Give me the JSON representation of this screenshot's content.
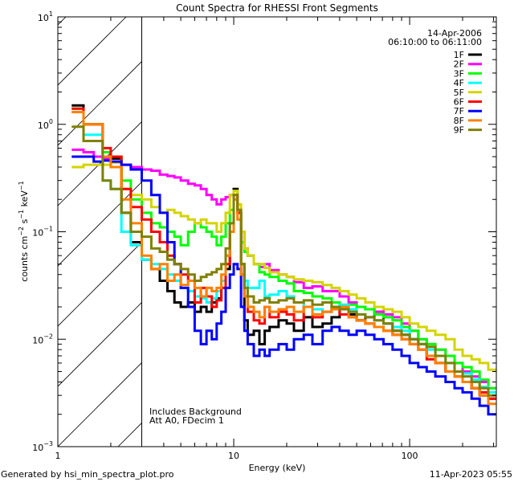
{
  "chart_data": {
    "type": "line",
    "title": "Count Spectra for RHESSI Front Segments",
    "xlabel": "Energy (keV)",
    "ylabel": "counts cm-2 s-1 keV-1",
    "xscale": "log",
    "yscale": "log",
    "xlim": [
      1,
      311
    ],
    "ylim": [
      0.001,
      10
    ],
    "x_ticks": [
      "1",
      "10",
      "100"
    ],
    "y_ticks": [
      {
        "value": 10,
        "mantissa": "10",
        "exp": "1"
      },
      {
        "value": 1,
        "mantissa": "10",
        "exp": "0"
      },
      {
        "value": 0.1,
        "mantissa": "10",
        "exp": "−1"
      },
      {
        "value": 0.01,
        "mantissa": "10",
        "exp": "−2"
      },
      {
        "value": 0.001,
        "mantissa": "10",
        "exp": "−3"
      }
    ],
    "hatched_region_keV": [
      1,
      3
    ],
    "legend_position": "top-right",
    "legend_header": [
      "14-Apr-2006",
      "06:10:00 to 06:11:00"
    ],
    "annotations": [
      "Includes Background",
      "Att A0, FDecim 1"
    ],
    "x": [
      1.2,
      1.4,
      1.6,
      1.8,
      2.0,
      2.3,
      2.6,
      3.0,
      3.4,
      3.8,
      4.2,
      4.6,
      5.0,
      5.5,
      6.0,
      6.5,
      7.0,
      7.5,
      8.0,
      8.5,
      9.0,
      9.5,
      10.0,
      10.5,
      11.0,
      11.5,
      12.0,
      13,
      14,
      15,
      16,
      18,
      20,
      22,
      25,
      28,
      32,
      36,
      40,
      45,
      50,
      56,
      63,
      71,
      80,
      90,
      100,
      112,
      125,
      140,
      160,
      180,
      200,
      225,
      250,
      280,
      311
    ],
    "series": [
      {
        "name": "1F",
        "color": "#000000",
        "values": [
          1.5,
          1.0,
          1.0,
          0.55,
          0.48,
          0.15,
          0.08,
          0.055,
          0.045,
          0.035,
          0.028,
          0.022,
          0.02,
          0.022,
          0.018,
          0.02,
          0.018,
          0.022,
          0.024,
          0.03,
          0.045,
          0.1,
          0.25,
          0.15,
          0.04,
          0.015,
          0.011,
          0.012,
          0.009,
          0.012,
          0.013,
          0.015,
          0.014,
          0.012,
          0.016,
          0.013,
          0.014,
          0.016,
          0.019,
          0.017,
          0.015,
          0.016,
          0.018,
          0.014,
          0.012,
          0.011,
          0.01,
          0.009,
          0.007,
          0.006,
          0.005,
          0.0045,
          0.004,
          0.0035,
          0.003,
          0.0028,
          0.0025
        ]
      },
      {
        "name": "2F",
        "color": "#ff00ff",
        "values": [
          0.58,
          0.55,
          0.5,
          0.48,
          0.45,
          0.42,
          0.4,
          0.38,
          0.37,
          0.34,
          0.33,
          0.32,
          0.3,
          0.28,
          0.27,
          0.25,
          0.22,
          0.2,
          0.18,
          0.2,
          0.21,
          0.22,
          0.2,
          0.15,
          0.1,
          0.07,
          0.06,
          0.05,
          0.047,
          0.05,
          0.044,
          0.04,
          0.038,
          0.034,
          0.03,
          0.031,
          0.028,
          0.028,
          0.025,
          0.022,
          0.02,
          0.019,
          0.018,
          0.017,
          0.016,
          0.014,
          0.012,
          0.01,
          0.009,
          0.008,
          0.007,
          0.006,
          0.005,
          0.0045,
          0.004,
          0.0035,
          0.003
        ]
      },
      {
        "name": "3F",
        "color": "#00ff00",
        "values": [
          1.4,
          1.0,
          1.0,
          0.55,
          0.5,
          0.3,
          0.2,
          0.15,
          0.12,
          0.11,
          0.1,
          0.09,
          0.075,
          0.1,
          0.12,
          0.11,
          0.1,
          0.09,
          0.075,
          0.09,
          0.12,
          0.16,
          0.2,
          0.15,
          0.08,
          0.065,
          0.06,
          0.05,
          0.042,
          0.04,
          0.038,
          0.035,
          0.033,
          0.028,
          0.027,
          0.025,
          0.024,
          0.022,
          0.02,
          0.021,
          0.02,
          0.019,
          0.017,
          0.016,
          0.015,
          0.013,
          0.012,
          0.01,
          0.009,
          0.008,
          0.007,
          0.006,
          0.0055,
          0.005,
          0.0042,
          0.0035,
          0.003
        ]
      },
      {
        "name": "4F",
        "color": "#00ffff",
        "values": [
          1.3,
          0.8,
          0.8,
          0.3,
          0.25,
          0.1,
          0.075,
          0.055,
          0.05,
          0.045,
          0.04,
          0.035,
          0.03,
          0.028,
          0.025,
          0.024,
          0.022,
          0.024,
          0.028,
          0.035,
          0.06,
          0.12,
          0.2,
          0.15,
          0.05,
          0.035,
          0.03,
          0.03,
          0.035,
          0.025,
          0.026,
          0.028,
          0.025,
          0.022,
          0.02,
          0.019,
          0.018,
          0.02,
          0.021,
          0.019,
          0.017,
          0.016,
          0.015,
          0.014,
          0.013,
          0.012,
          0.01,
          0.009,
          0.008,
          0.007,
          0.006,
          0.005,
          0.0048,
          0.0042,
          0.0036,
          0.0032,
          0.0028
        ]
      },
      {
        "name": "5F",
        "color": "#d4d400",
        "values": [
          0.4,
          0.42,
          0.42,
          0.42,
          0.44,
          0.25,
          0.22,
          0.2,
          0.17,
          0.15,
          0.16,
          0.15,
          0.14,
          0.13,
          0.12,
          0.13,
          0.12,
          0.12,
          0.1,
          0.12,
          0.15,
          0.22,
          0.24,
          0.18,
          0.1,
          0.07,
          0.06,
          0.05,
          0.05,
          0.046,
          0.042,
          0.04,
          0.038,
          0.036,
          0.035,
          0.034,
          0.032,
          0.03,
          0.028,
          0.026,
          0.024,
          0.022,
          0.02,
          0.019,
          0.018,
          0.016,
          0.014,
          0.013,
          0.012,
          0.011,
          0.01,
          0.008,
          0.007,
          0.0065,
          0.006,
          0.0052,
          0.0045
        ]
      },
      {
        "name": "6F",
        "color": "#ff0000",
        "values": [
          1.4,
          1.0,
          1.0,
          0.6,
          0.5,
          0.25,
          0.17,
          0.13,
          0.1,
          0.08,
          0.06,
          0.05,
          0.04,
          0.035,
          0.022,
          0.03,
          0.025,
          0.02,
          0.023,
          0.03,
          0.05,
          0.1,
          0.22,
          0.15,
          0.05,
          0.025,
          0.018,
          0.015,
          0.014,
          0.02,
          0.016,
          0.018,
          0.017,
          0.015,
          0.02,
          0.016,
          0.018,
          0.02,
          0.017,
          0.016,
          0.015,
          0.014,
          0.013,
          0.012,
          0.011,
          0.01,
          0.009,
          0.008,
          0.0065,
          0.006,
          0.005,
          0.0045,
          0.004,
          0.0035,
          0.0032,
          0.0028,
          0.0025
        ]
      },
      {
        "name": "7F",
        "color": "#0000ff",
        "values": [
          0.5,
          0.5,
          0.45,
          0.46,
          0.45,
          0.42,
          0.38,
          0.3,
          0.22,
          0.15,
          0.08,
          0.05,
          0.03,
          0.02,
          0.012,
          0.009,
          0.012,
          0.01,
          0.014,
          0.018,
          0.03,
          0.04,
          0.05,
          0.045,
          0.02,
          0.012,
          0.009,
          0.007,
          0.008,
          0.007,
          0.008,
          0.009,
          0.008,
          0.01,
          0.011,
          0.009,
          0.012,
          0.013,
          0.012,
          0.011,
          0.012,
          0.011,
          0.01,
          0.009,
          0.008,
          0.007,
          0.006,
          0.0055,
          0.005,
          0.0045,
          0.004,
          0.0035,
          0.0032,
          0.0028,
          0.0024,
          0.002,
          0.0018
        ]
      },
      {
        "name": "8F",
        "color": "#ff8000",
        "values": [
          1.3,
          1.0,
          1.0,
          0.5,
          0.4,
          0.2,
          0.12,
          0.06,
          0.045,
          0.05,
          0.035,
          0.04,
          0.032,
          0.035,
          0.03,
          0.025,
          0.03,
          0.028,
          0.03,
          0.04,
          0.06,
          0.1,
          0.2,
          0.13,
          0.04,
          0.025,
          0.02,
          0.018,
          0.016,
          0.02,
          0.018,
          0.019,
          0.02,
          0.018,
          0.02,
          0.017,
          0.018,
          0.019,
          0.02,
          0.016,
          0.015,
          0.014,
          0.013,
          0.012,
          0.011,
          0.01,
          0.009,
          0.008,
          0.007,
          0.006,
          0.005,
          0.0045,
          0.004,
          0.0035,
          0.003,
          0.0025,
          0.0022
        ]
      },
      {
        "name": "9F",
        "color": "#808000",
        "values": [
          0.95,
          0.7,
          0.7,
          0.3,
          0.25,
          0.15,
          0.1,
          0.09,
          0.07,
          0.065,
          0.055,
          0.05,
          0.045,
          0.04,
          0.035,
          0.038,
          0.04,
          0.042,
          0.045,
          0.05,
          0.07,
          0.12,
          0.22,
          0.16,
          0.05,
          0.03,
          0.025,
          0.022,
          0.023,
          0.024,
          0.022,
          0.023,
          0.024,
          0.022,
          0.023,
          0.021,
          0.022,
          0.02,
          0.019,
          0.018,
          0.017,
          0.016,
          0.015,
          0.014,
          0.012,
          0.011,
          0.01,
          0.009,
          0.0085,
          0.007,
          0.006,
          0.005,
          0.0045,
          0.004,
          0.0035,
          0.003,
          0.0027
        ]
      }
    ]
  },
  "footer": {
    "generated_by": "Generated by hsi_min_spectra_plot.pro",
    "timestamp": "11-Apr-2023 05:55"
  }
}
